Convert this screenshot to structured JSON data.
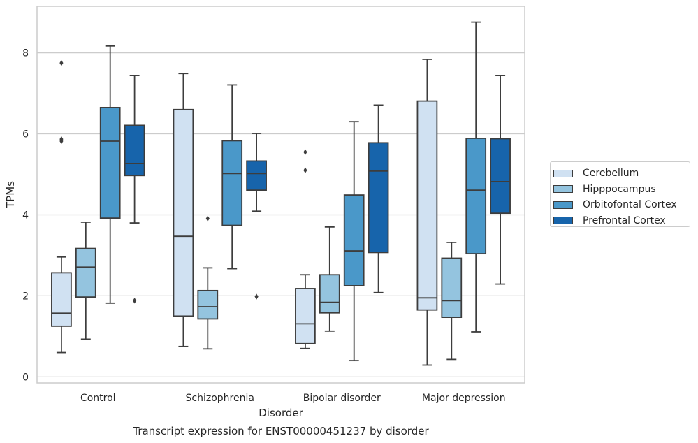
{
  "caption": "Transcript expression for ENST00000451237 by disorder",
  "legend": {
    "items": [
      {
        "label": "Cerebellum",
        "color": "#d0e1f2"
      },
      {
        "label": "Hipppocampus",
        "color": "#94c4df"
      },
      {
        "label": "Orbitofontal Cortex",
        "color": "#4a98c9"
      },
      {
        "label": "Prefrontal Cortex",
        "color": "#1764ab"
      }
    ]
  },
  "chart_data": {
    "type": "boxplot",
    "xlabel": "Disorder",
    "ylabel": "TPMs",
    "ylim": [
      -0.15,
      9.15
    ],
    "yticks": [
      0,
      2,
      4,
      6,
      8
    ],
    "grid": "horizontal",
    "legend_position": "right",
    "categories": [
      "Control",
      "Schizophrenia",
      "Bipolar disorder",
      "Major depression"
    ],
    "series": [
      {
        "name": "Cerebellum",
        "color": "#d0e1f2",
        "boxes": [
          {
            "whislo": 0.6,
            "q1": 1.25,
            "med": 1.57,
            "q3": 2.57,
            "whishi": 2.96,
            "fliers": [
              7.75,
              5.87,
              5.82
            ]
          },
          {
            "whislo": 0.75,
            "q1": 1.5,
            "med": 3.47,
            "q3": 6.6,
            "whishi": 7.49,
            "fliers": []
          },
          {
            "whislo": 0.7,
            "q1": 0.82,
            "med": 1.31,
            "q3": 2.18,
            "whishi": 2.52,
            "fliers": [
              5.55,
              5.1
            ]
          },
          {
            "whislo": 0.29,
            "q1": 1.65,
            "med": 1.95,
            "q3": 6.81,
            "whishi": 7.84,
            "fliers": []
          }
        ]
      },
      {
        "name": "Hipppocampus",
        "color": "#94c4df",
        "boxes": [
          {
            "whislo": 0.93,
            "q1": 1.97,
            "med": 2.71,
            "q3": 3.17,
            "whishi": 3.82,
            "fliers": []
          },
          {
            "whislo": 0.69,
            "q1": 1.43,
            "med": 1.73,
            "q3": 2.13,
            "whishi": 2.69,
            "fliers": [
              3.91
            ]
          },
          {
            "whislo": 1.13,
            "q1": 1.58,
            "med": 1.84,
            "q3": 2.52,
            "whishi": 3.7,
            "fliers": []
          },
          {
            "whislo": 0.43,
            "q1": 1.47,
            "med": 1.88,
            "q3": 2.93,
            "whishi": 3.32,
            "fliers": []
          }
        ]
      },
      {
        "name": "Orbitofontal Cortex",
        "color": "#4a98c9",
        "boxes": [
          {
            "whislo": 1.82,
            "q1": 3.92,
            "med": 5.82,
            "q3": 6.65,
            "whishi": 8.17,
            "fliers": []
          },
          {
            "whislo": 2.67,
            "q1": 3.74,
            "med": 5.02,
            "q3": 5.83,
            "whishi": 7.21,
            "fliers": []
          },
          {
            "whislo": 0.4,
            "q1": 2.25,
            "med": 3.11,
            "q3": 4.49,
            "whishi": 6.3,
            "fliers": []
          },
          {
            "whislo": 1.11,
            "q1": 3.04,
            "med": 4.61,
            "q3": 5.89,
            "whishi": 8.76,
            "fliers": []
          }
        ]
      },
      {
        "name": "Prefrontal Cortex",
        "color": "#1764ab",
        "boxes": [
          {
            "whislo": 3.8,
            "q1": 4.97,
            "med": 5.27,
            "q3": 6.21,
            "whishi": 7.44,
            "fliers": [
              1.88
            ]
          },
          {
            "whislo": 4.09,
            "q1": 4.61,
            "med": 5.02,
            "q3": 5.33,
            "whishi": 6.01,
            "fliers": [
              1.98
            ]
          },
          {
            "whislo": 2.08,
            "q1": 3.07,
            "med": 5.08,
            "q3": 5.78,
            "whishi": 6.71,
            "fliers": []
          },
          {
            "whislo": 2.29,
            "q1": 4.04,
            "med": 4.82,
            "q3": 5.88,
            "whishi": 7.44,
            "fliers": []
          }
        ]
      }
    ]
  }
}
